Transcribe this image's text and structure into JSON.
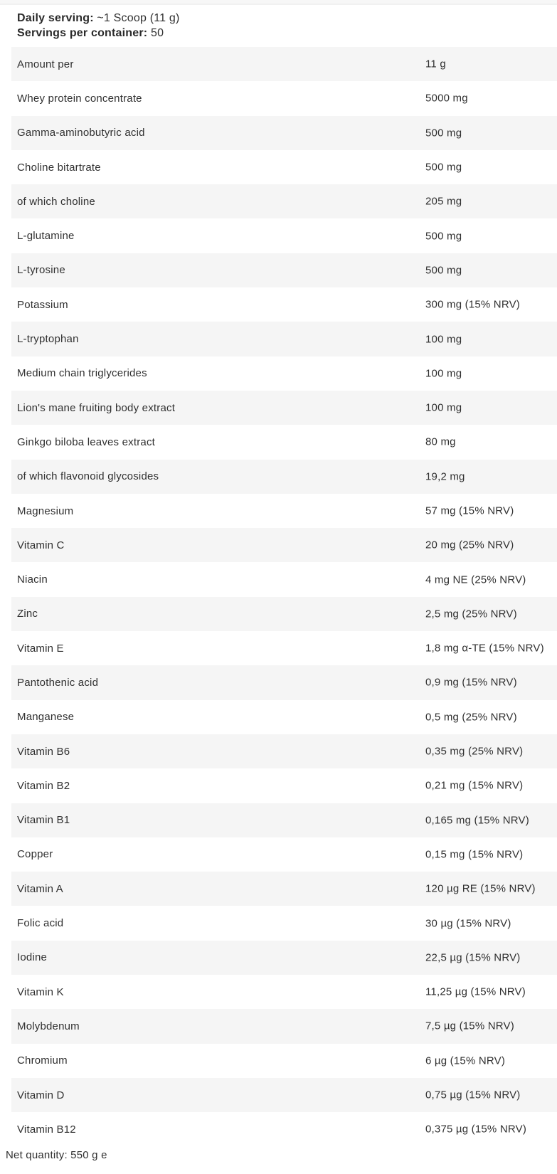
{
  "header": {
    "daily_serving_label": "Daily serving:",
    "daily_serving_value": "~1 Scoop (11 g)",
    "servings_label": "Servings per container:",
    "servings_value": "50"
  },
  "table": {
    "rows": [
      {
        "label": "Amount per",
        "value": "11 g"
      },
      {
        "label": "Whey protein concentrate",
        "value": "5000 mg"
      },
      {
        "label": "Gamma-aminobutyric acid",
        "value": "500 mg"
      },
      {
        "label": "Choline bitartrate",
        "value": "500 mg"
      },
      {
        "label": "of which choline",
        "value": "205 mg"
      },
      {
        "label": "L-glutamine",
        "value": "500 mg"
      },
      {
        "label": "L-tyrosine",
        "value": "500 mg"
      },
      {
        "label": "Potassium",
        "value": "300 mg (15% NRV)"
      },
      {
        "label": "L-tryptophan",
        "value": "100 mg"
      },
      {
        "label": "Medium chain triglycerides",
        "value": "100 mg"
      },
      {
        "label": "Lion's mane fruiting body extract",
        "value": "100 mg"
      },
      {
        "label": "Ginkgo biloba leaves extract",
        "value": "80 mg"
      },
      {
        "label": "of which flavonoid glycosides",
        "value": "19,2 mg"
      },
      {
        "label": "Magnesium",
        "value": "57 mg (15% NRV)"
      },
      {
        "label": "Vitamin C",
        "value": "20 mg (25% NRV)"
      },
      {
        "label": "Niacin",
        "value": "4 mg NE (25% NRV)"
      },
      {
        "label": "Zinc",
        "value": "2,5 mg (25% NRV)"
      },
      {
        "label": "Vitamin E",
        "value": "1,8 mg α-TE (15% NRV)"
      },
      {
        "label": "Pantothenic acid",
        "value": "0,9 mg (15% NRV)"
      },
      {
        "label": "Manganese",
        "value": "0,5 mg (25% NRV)"
      },
      {
        "label": "Vitamin B6",
        "value": "0,35 mg (25% NRV)"
      },
      {
        "label": "Vitamin B2",
        "value": "0,21 mg (15% NRV)"
      },
      {
        "label": "Vitamin B1",
        "value": "0,165 mg (15% NRV)"
      },
      {
        "label": "Copper",
        "value": "0,15 mg (15% NRV)"
      },
      {
        "label": "Vitamin A",
        "value": "120 µg RE (15% NRV)"
      },
      {
        "label": "Folic acid",
        "value": "30 µg (15% NRV)"
      },
      {
        "label": "Iodine",
        "value": "22,5 µg (15% NRV)"
      },
      {
        "label": "Vitamin K",
        "value": "11,25 µg (15% NRV)"
      },
      {
        "label": "Molybdenum",
        "value": "7,5 µg (15% NRV)"
      },
      {
        "label": "Chromium",
        "value": "6 µg (15% NRV)"
      },
      {
        "label": "Vitamin D",
        "value": "0,75 µg (15% NRV)"
      },
      {
        "label": "Vitamin B12",
        "value": "0,375 µg (15% NRV)"
      }
    ]
  },
  "footer": {
    "net_quantity": "Net quantity: 550 g e"
  },
  "colors": {
    "stripe": "#f5f5f5",
    "text": "#303030",
    "background": "#ffffff"
  }
}
